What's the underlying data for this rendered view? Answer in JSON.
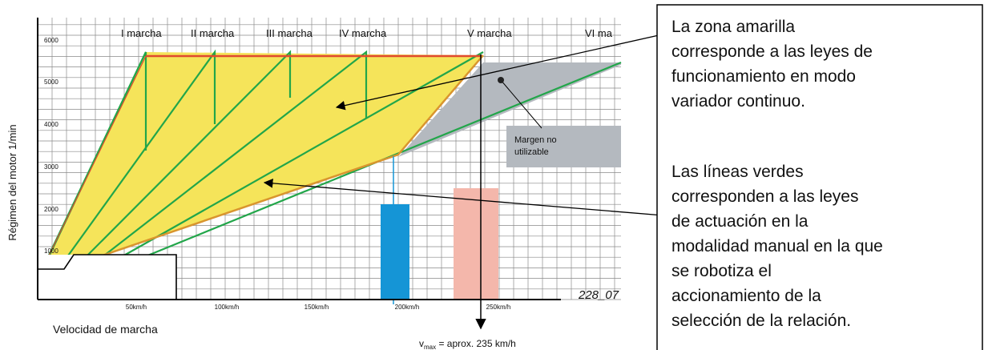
{
  "chart": {
    "y_axis_label": "Régimen del motor 1/min",
    "x_axis_label": "Velocidad de marcha",
    "y_ticks": [
      "1000",
      "2000",
      "3000",
      "4000",
      "5000",
      "6000"
    ],
    "x_ticks": [
      "50km/h",
      "100km/h",
      "150km/h",
      "200km/h",
      "250km/h"
    ],
    "gears": [
      "I marcha",
      "II marcha",
      "III marcha",
      "IV marcha",
      "V marcha",
      "VI ma"
    ],
    "margin_note": [
      "Margen no",
      "utilizable"
    ],
    "figure_ref": "228_07",
    "vmax_symbol": "v",
    "vmax_subscript": "max",
    "vmax_value": " = aprox. 235 km/h",
    "colors": {
      "yellow_zone": "#f5e45a",
      "green_lines": "#22a64a",
      "red_limit": "#e04a2f",
      "orange_edge": "#d9952e",
      "gray_margin": "#b4b9bf",
      "blue_bar": "#1595d6",
      "pink_bar": "#f4b7ab"
    }
  },
  "explanation": {
    "paragraph1": [
      "La zona  amarilla",
      "corresponde a las leyes de",
      "funcionamiento en modo",
      "variador continuo."
    ],
    "paragraph2": [
      "Las líneas verdes",
      "corresponden  a las leyes",
      "de actuación en la",
      "modalidad manual en la que",
      "se robotiza el",
      "accionamiento de la",
      "selección de la relación."
    ]
  }
}
